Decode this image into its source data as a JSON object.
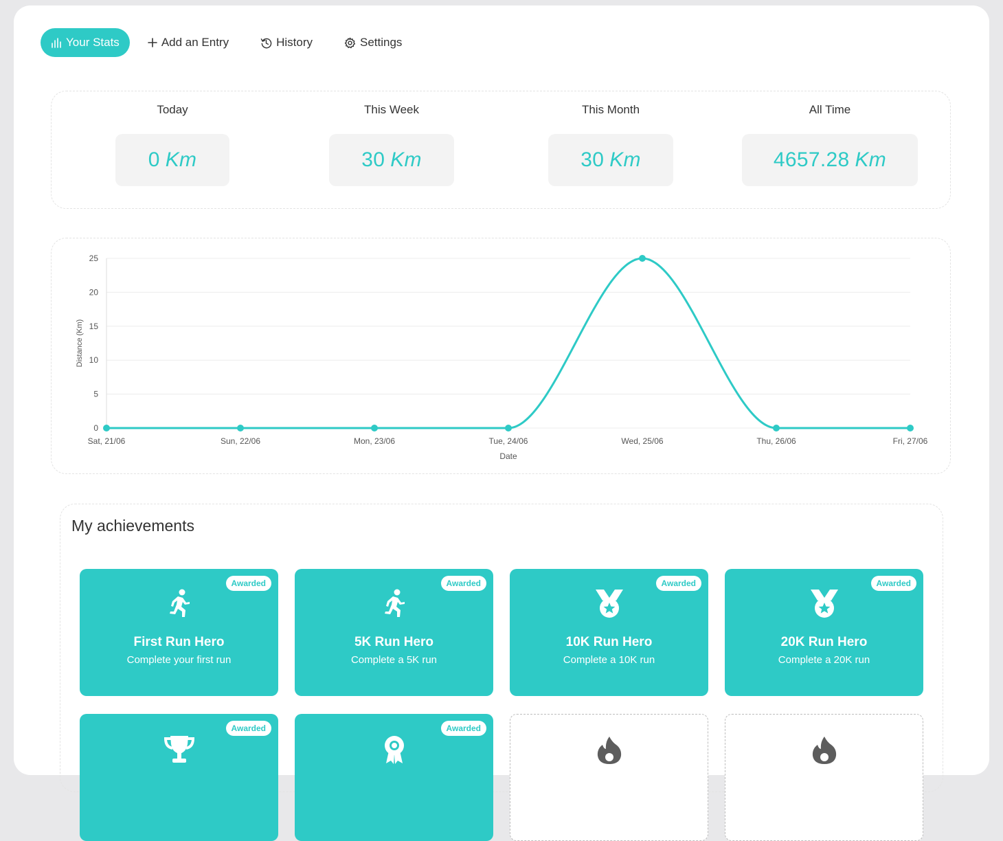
{
  "nav": {
    "items": [
      {
        "label": "Your Stats",
        "icon": "bar-chart-icon",
        "active": true
      },
      {
        "label": "Add an Entry",
        "icon": "plus-icon",
        "active": false
      },
      {
        "label": "History",
        "icon": "history-icon",
        "active": false
      },
      {
        "label": "Settings",
        "icon": "gear-icon",
        "active": false
      }
    ]
  },
  "stats": [
    {
      "label": "Today",
      "value": "0",
      "unit": "Km"
    },
    {
      "label": "This Week",
      "value": "30",
      "unit": "Km"
    },
    {
      "label": "This Month",
      "value": "30",
      "unit": "Km"
    },
    {
      "label": "All Time",
      "value": "4657.28",
      "unit": "Km"
    }
  ],
  "chart_data": {
    "type": "line",
    "x": [
      "Sat, 21/06",
      "Sun, 22/06",
      "Mon, 23/06",
      "Tue, 24/06",
      "Wed, 25/06",
      "Thu, 26/06",
      "Fri, 27/06"
    ],
    "series": [
      {
        "values": [
          0,
          0,
          0,
          0,
          25,
          0,
          0
        ]
      }
    ],
    "xlabel": "Date",
    "ylabel": "Distance (Km)",
    "ylim": [
      0,
      25
    ],
    "yticks": [
      0,
      5,
      10,
      15,
      20,
      25
    ],
    "grid": true,
    "color": "#2ecac6"
  },
  "achievements": {
    "title": "My achievements",
    "items": [
      {
        "name": "First Run Hero",
        "desc": "Complete your first run",
        "status": "Awarded",
        "icon": "runner-icon",
        "awarded": true
      },
      {
        "name": "5K Run Hero",
        "desc": "Complete a 5K run",
        "status": "Awarded",
        "icon": "runner-icon",
        "awarded": true
      },
      {
        "name": "10K Run Hero",
        "desc": "Complete a 10K run",
        "status": "Awarded",
        "icon": "medal-icon",
        "awarded": true
      },
      {
        "name": "20K Run Hero",
        "desc": "Complete a 20K run",
        "status": "Awarded",
        "icon": "medal-icon",
        "awarded": true
      },
      {
        "name": "",
        "desc": "",
        "status": "Awarded",
        "icon": "trophy-icon",
        "awarded": true
      },
      {
        "name": "",
        "desc": "",
        "status": "Awarded",
        "icon": "award-ribbon-icon",
        "awarded": true
      },
      {
        "name": "",
        "desc": "",
        "status": "",
        "icon": "flame-icon",
        "awarded": false
      },
      {
        "name": "",
        "desc": "",
        "status": "",
        "icon": "flame-icon",
        "awarded": false
      }
    ]
  },
  "colors": {
    "accent": "#2ecac6",
    "stat_box": "#f3f3f3",
    "background": "#e8e8ea"
  }
}
